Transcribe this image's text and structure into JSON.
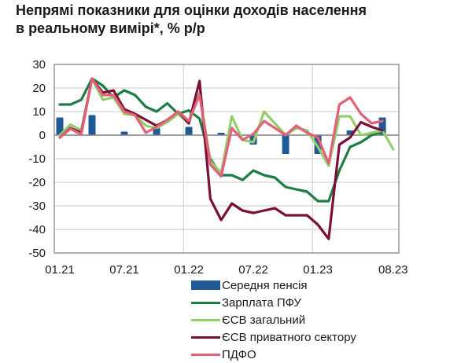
{
  "title": {
    "line1": "Непрямі показники для оцінки доходів населення",
    "line2": "в реальному вимірі*, % р/р"
  },
  "axis": {
    "y_ticks": [
      "30",
      "20",
      "10",
      "0",
      "-10",
      "-20",
      "-30",
      "-40",
      "-50"
    ],
    "x_ticks": [
      "01.21",
      "07.21",
      "01.22",
      "07.22",
      "01.23",
      "08.23"
    ]
  },
  "legend": {
    "items": [
      {
        "label": "Середня пенсія",
        "type": "bar",
        "color": "#1f5a96"
      },
      {
        "label": "Зарплата ПФУ",
        "type": "line",
        "color": "#1e7d45"
      },
      {
        "label": "ЄСВ загальний",
        "type": "line",
        "color": "#92cf6b"
      },
      {
        "label": "ЄСВ приватного сектору",
        "type": "line",
        "color": "#7a1134"
      },
      {
        "label": "ПДФО",
        "type": "line",
        "color": "#e2607a"
      }
    ]
  },
  "chart_data": {
    "type": "bar+line",
    "title": "Непрямі показники для оцінки доходів населення в реальному вимірі*, % р/р",
    "xlabel": "",
    "ylabel": "% р/р",
    "ylim": [
      -50,
      30
    ],
    "grid": true,
    "legend_position": "bottom",
    "x": [
      "01.21",
      "02.21",
      "03.21",
      "04.21",
      "05.21",
      "06.21",
      "07.21",
      "08.21",
      "09.21",
      "10.21",
      "11.21",
      "12.21",
      "01.22",
      "02.22",
      "03.22",
      "04.22",
      "05.22",
      "06.22",
      "07.22",
      "08.22",
      "09.22",
      "10.22",
      "11.22",
      "12.22",
      "01.23",
      "02.23",
      "03.23",
      "04.23",
      "05.23",
      "06.23",
      "07.23",
      "08.23"
    ],
    "x_tick_labels": [
      "01.21",
      "07.21",
      "01.22",
      "07.22",
      "01.23",
      "08.23"
    ],
    "series": [
      {
        "name": "Середня пенсія",
        "type": "bar",
        "values": [
          7.5,
          null,
          null,
          8.5,
          null,
          null,
          1.5,
          null,
          null,
          3,
          null,
          null,
          3.5,
          null,
          null,
          1,
          null,
          null,
          -4,
          null,
          null,
          -8,
          null,
          null,
          -8,
          null,
          null,
          2,
          null,
          null,
          7.5,
          null
        ]
      },
      {
        "name": "Зарплата ПФУ",
        "type": "line",
        "values": [
          13,
          13,
          15,
          24,
          21,
          16,
          19,
          17,
          12,
          10,
          13.5,
          9,
          10.5,
          7,
          -10,
          -17,
          -17,
          -19,
          -15,
          -17,
          -18,
          -22,
          -23,
          -24,
          -28,
          -28,
          -15,
          -5,
          -3,
          0,
          1.5,
          null
        ]
      },
      {
        "name": "ЄСВ загальний",
        "type": "line",
        "values": [
          0,
          4.5,
          2,
          24,
          15,
          16,
          9,
          8.5,
          4,
          3,
          5.5,
          9,
          5,
          18,
          -11,
          -16,
          8,
          -2,
          -3,
          10,
          5,
          0,
          3,
          2,
          -5,
          -13,
          8,
          8,
          0,
          1,
          2,
          -6
        ]
      },
      {
        "name": "ЄСВ приватного сектору",
        "type": "line",
        "values": [
          -1,
          3,
          1,
          24,
          18,
          19,
          11,
          9,
          6.5,
          4,
          6.5,
          10,
          5,
          23,
          -27,
          -36,
          -29,
          -32,
          -33,
          -32,
          -31,
          -34,
          -34,
          -34,
          -38,
          -44,
          -4,
          -1,
          5.5,
          3.5,
          2,
          null
        ]
      },
      {
        "name": "ПДФО",
        "type": "line",
        "values": [
          -1,
          2.7,
          0.3,
          24,
          17,
          17,
          10,
          8.5,
          1,
          3.5,
          6.5,
          10,
          6,
          17,
          -12.5,
          -17.5,
          3,
          -2,
          0.5,
          6,
          3,
          0,
          4,
          1,
          -1,
          -12,
          13,
          16,
          9,
          5,
          6,
          null
        ]
      }
    ]
  }
}
